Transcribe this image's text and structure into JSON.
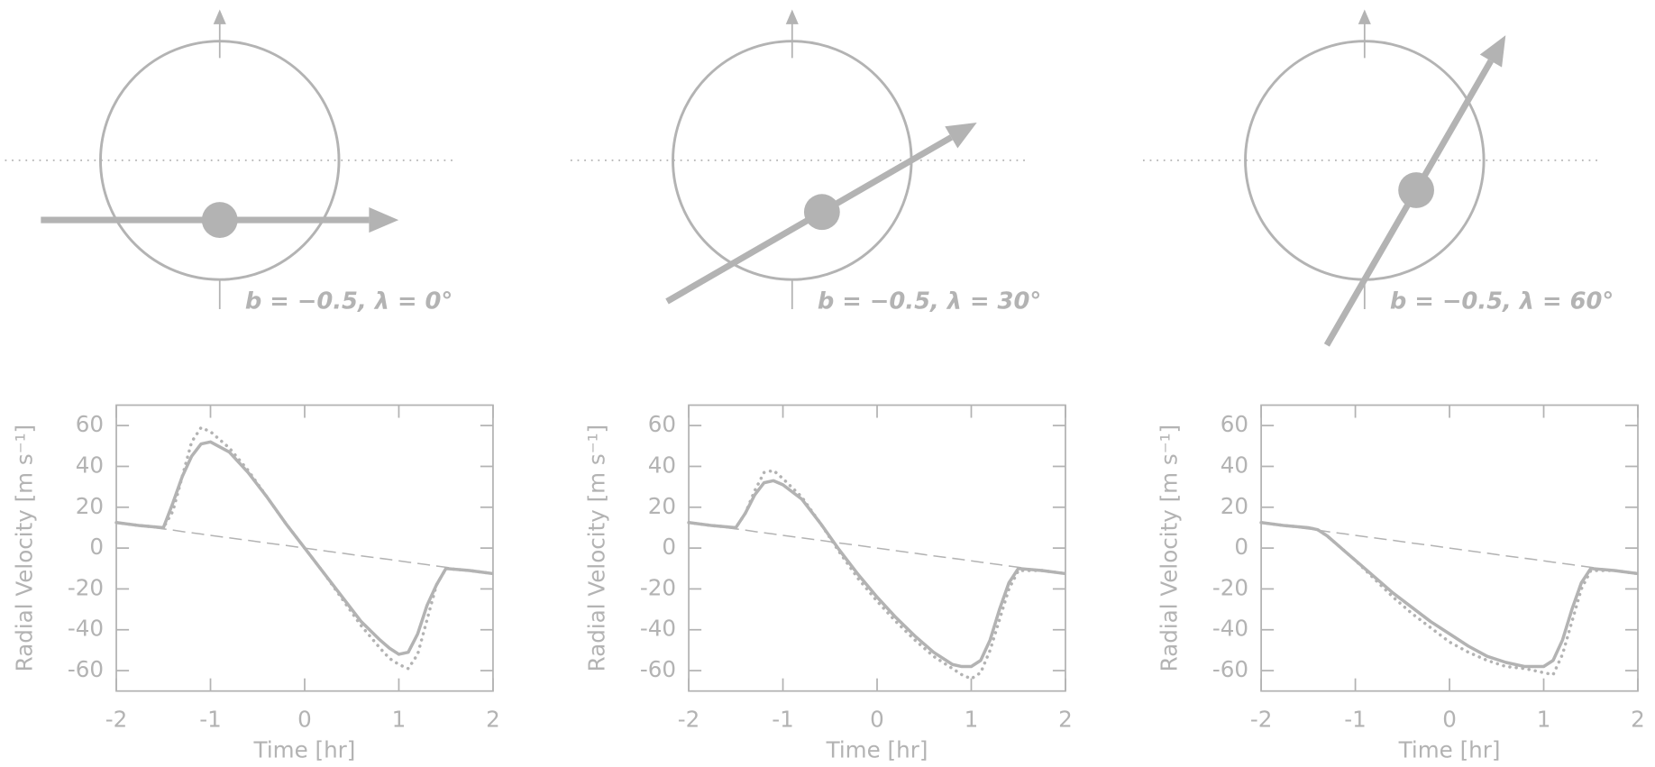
{
  "chart_data": [
    {
      "type": "line",
      "annotation": "b = −0.5, λ = 0°",
      "impact_parameter": -0.5,
      "spin_orbit_angle": 0,
      "xlabel": "Time [hr]",
      "ylabel": "Radial Velocity [m s⁻¹]",
      "xlim": [
        -2,
        2
      ],
      "ylim": [
        -70,
        70
      ],
      "xticks": [
        -2,
        -1,
        0,
        1,
        2
      ],
      "yticks": [
        -60,
        -40,
        -20,
        0,
        20,
        40,
        60
      ],
      "x": [
        -2,
        -1.75,
        -1.5,
        -1.4,
        -1.3,
        -1.2,
        -1.1,
        -1,
        -0.8,
        -0.6,
        -0.4,
        -0.2,
        0,
        0.2,
        0.4,
        0.6,
        0.8,
        0.9,
        1,
        1.1,
        1.2,
        1.3,
        1.4,
        1.5,
        1.75,
        2
      ],
      "series": [
        {
          "style": "solid",
          "color": "#b3b3b3",
          "values": [
            12.5,
            11,
            10,
            22,
            35,
            45,
            51,
            52,
            47,
            37,
            25,
            12,
            0,
            -12,
            -24,
            -36,
            -45,
            -49,
            -52,
            -51,
            -42,
            -28,
            -18,
            -10,
            -11,
            -12.5
          ]
        },
        {
          "style": "dotted",
          "color": "#b3b3b3",
          "values": [
            12.5,
            11,
            10,
            18,
            35,
            52,
            59,
            57,
            49,
            38,
            25,
            12,
            0,
            -12,
            -25,
            -38,
            -49,
            -54,
            -57,
            -59,
            -52,
            -35,
            -18,
            -10,
            -11,
            -12.5
          ]
        },
        {
          "style": "dashed",
          "color": "#b3b3b3",
          "values": [
            12.5,
            10.9,
            9.4,
            8.8,
            8.1,
            7.5,
            6.9,
            6.25,
            5,
            3.8,
            2.5,
            1.3,
            0,
            -1.3,
            -2.5,
            -3.8,
            -5,
            -5.6,
            -6.25,
            -6.9,
            -7.5,
            -8.1,
            -8.8,
            -9.4,
            -10.9,
            -12.5
          ]
        }
      ]
    },
    {
      "type": "line",
      "annotation": "b = −0.5, λ = 30°",
      "impact_parameter": -0.5,
      "spin_orbit_angle": 30,
      "xlabel": "Time [hr]",
      "ylabel": "Radial Velocity [m s⁻¹]",
      "xlim": [
        -2,
        2
      ],
      "ylim": [
        -70,
        70
      ],
      "xticks": [
        -2,
        -1,
        0,
        1,
        2
      ],
      "yticks": [
        -60,
        -40,
        -20,
        0,
        20,
        40,
        60
      ],
      "x": [
        -2,
        -1.75,
        -1.5,
        -1.4,
        -1.3,
        -1.2,
        -1.1,
        -1,
        -0.8,
        -0.6,
        -0.4,
        -0.2,
        0,
        0.2,
        0.4,
        0.6,
        0.8,
        0.9,
        1,
        1.1,
        1.2,
        1.3,
        1.4,
        1.5,
        1.75,
        2
      ],
      "series": [
        {
          "style": "solid",
          "color": "#b3b3b3",
          "values": [
            12.5,
            11,
            10,
            17,
            26,
            32,
            33,
            31,
            24,
            12,
            -1,
            -13,
            -24,
            -34,
            -43,
            -51,
            -57,
            -58,
            -58,
            -55,
            -45,
            -30,
            -17,
            -10,
            -11,
            -12.5
          ]
        },
        {
          "style": "dotted",
          "color": "#b3b3b3",
          "values": [
            12.5,
            11,
            10,
            17,
            28,
            37,
            38,
            34,
            25,
            12,
            -2,
            -15,
            -26,
            -36,
            -45,
            -53,
            -59,
            -62,
            -64,
            -61,
            -50,
            -35,
            -20,
            -11,
            -11,
            -12.5
          ]
        },
        {
          "style": "dashed",
          "color": "#b3b3b3",
          "values": [
            12.5,
            10.9,
            9.4,
            8.8,
            8.1,
            7.5,
            6.9,
            6.25,
            5,
            3.8,
            2.5,
            1.3,
            0,
            -1.3,
            -2.5,
            -3.8,
            -5,
            -5.6,
            -6.25,
            -6.9,
            -7.5,
            -8.1,
            -8.8,
            -9.4,
            -10.9,
            -12.5
          ]
        }
      ]
    },
    {
      "type": "line",
      "annotation": "b = −0.5, λ = 60°",
      "impact_parameter": -0.5,
      "spin_orbit_angle": 60,
      "xlabel": "Time [hr]",
      "ylabel": "Radial Velocity [m s⁻¹]",
      "xlim": [
        -2,
        2
      ],
      "ylim": [
        -70,
        70
      ],
      "xticks": [
        -2,
        -1,
        0,
        1,
        2
      ],
      "yticks": [
        -60,
        -40,
        -20,
        0,
        20,
        40,
        60
      ],
      "x": [
        -2,
        -1.75,
        -1.5,
        -1.4,
        -1.3,
        -1.2,
        -1.1,
        -1,
        -0.8,
        -0.6,
        -0.4,
        -0.2,
        0,
        0.2,
        0.4,
        0.6,
        0.8,
        0.9,
        1,
        1.1,
        1.2,
        1.3,
        1.4,
        1.5,
        1.75,
        2
      ],
      "series": [
        {
          "style": "solid",
          "color": "#b3b3b3",
          "values": [
            12.5,
            11,
            10,
            9,
            6,
            2,
            -2,
            -6,
            -14,
            -22,
            -29,
            -36,
            -42,
            -48,
            -53,
            -56,
            -58,
            -58,
            -58,
            -55,
            -45,
            -30,
            -17,
            -10,
            -11,
            -12.5
          ]
        },
        {
          "style": "dotted",
          "color": "#b3b3b3",
          "values": [
            12.5,
            11,
            10,
            9,
            6,
            2,
            -2,
            -6,
            -15,
            -24,
            -32,
            -39,
            -46,
            -51,
            -55,
            -58,
            -59,
            -60,
            -61,
            -62,
            -52,
            -36,
            -20,
            -11,
            -11,
            -12.5
          ]
        },
        {
          "style": "dashed",
          "color": "#b3b3b3",
          "values": [
            12.5,
            10.9,
            9.4,
            8.8,
            8.1,
            7.5,
            6.9,
            6.25,
            5,
            3.8,
            2.5,
            1.3,
            0,
            -1.3,
            -2.5,
            -3.8,
            -5,
            -5.6,
            -6.25,
            -6.9,
            -7.5,
            -8.1,
            -8.8,
            -9.4,
            -10.9,
            -12.5
          ]
        }
      ]
    }
  ]
}
